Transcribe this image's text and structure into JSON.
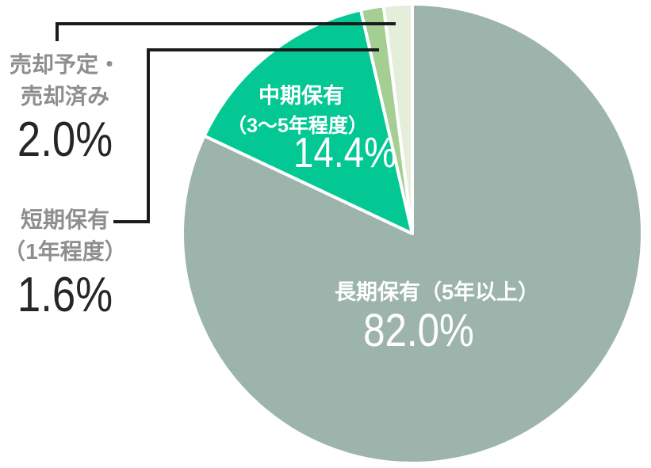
{
  "chart_data": {
    "type": "pie",
    "title": "",
    "unit": "%",
    "direction": "clockwise",
    "start_angle_deg": 0,
    "legend_position": "none",
    "separator_color": "#ffffff",
    "slices": [
      {
        "label": "長期保有（5年以上）",
        "value": 82.0,
        "display": "82.0%",
        "color": "#9cb4ab"
      },
      {
        "label": "中期保有（3～5年程度）",
        "value": 14.4,
        "display": "14.4%",
        "color": "#03c893"
      },
      {
        "label": "短期保有（1年程度）",
        "value": 1.6,
        "display": "1.6%",
        "color": "#a4ce92"
      },
      {
        "label": "売却予定・売却済み",
        "value": 2.0,
        "display": "2.0%",
        "color": "#e4eedb"
      }
    ],
    "annotations": "two small slices labeled via outside callouts with black elbow leader lines"
  },
  "slice_labels": {
    "long_term": {
      "line1": "長期保有（5年以上）",
      "value": "82.0%"
    },
    "mid_term": {
      "line1": "中期保有",
      "line2": "（3～5年程度）",
      "value": "14.4%"
    }
  },
  "callouts": {
    "sold": {
      "line1": "売却予定・",
      "line2": "売却済み",
      "value": "2.0%"
    },
    "short_term": {
      "line1": "短期保有",
      "line2": "（1年程度）",
      "value": "1.6%"
    }
  },
  "colors": {
    "long_term": "#9cb4ab",
    "mid_term": "#03c893",
    "short_term": "#a4ce92",
    "sold": "#e4eedb",
    "slice_text": "#ffffff",
    "callout_text": "#8e8e8e",
    "number_text": "#262626",
    "leader_line": "#1b1b1b"
  }
}
